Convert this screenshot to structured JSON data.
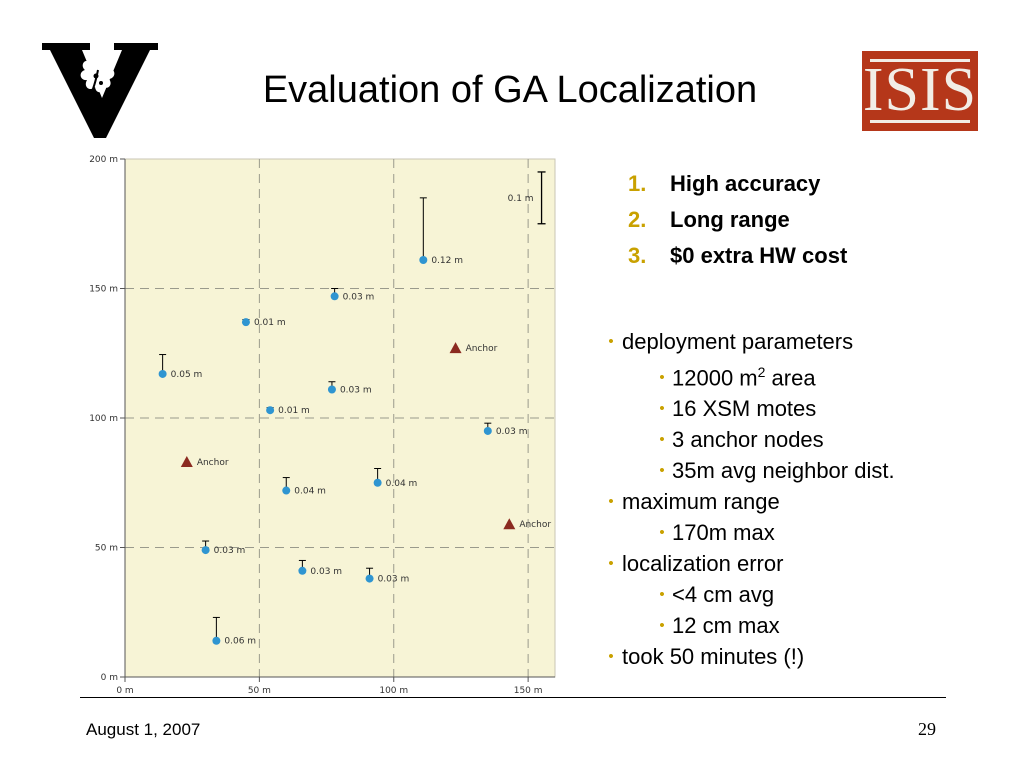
{
  "slide": {
    "title": "Evaluation of GA Localization",
    "numbered_points": [
      {
        "num": "1.",
        "text": "High accuracy"
      },
      {
        "num": "2.",
        "text": "Long range"
      },
      {
        "num": "3.",
        "text": "$0 extra HW cost"
      }
    ],
    "bullets": [
      {
        "level": 1,
        "text": "deployment parameters"
      },
      {
        "level": 2,
        "text": "12000 m",
        "sup": "2",
        "suffix": " area"
      },
      {
        "level": 2,
        "text": "16 XSM motes"
      },
      {
        "level": 2,
        "text": "3 anchor nodes"
      },
      {
        "level": 2,
        "text": "35m avg neighbor dist."
      },
      {
        "level": 1,
        "text": "maximum range"
      },
      {
        "level": 2,
        "text": "170m max"
      },
      {
        "level": 1,
        "text": "localization error"
      },
      {
        "level": 2,
        "text": "<4 cm avg"
      },
      {
        "level": 2,
        "text": "12 cm max"
      },
      {
        "level": 1,
        "text": "took 50 minutes (!)"
      }
    ],
    "footer": {
      "date": "August 1, 2007",
      "page": "29"
    },
    "isis_logo_text": "ISIS"
  },
  "colors": {
    "accent": "#c9a100",
    "plot_bg": "#f7f4d6",
    "mote": "#2f95d1",
    "anchor": "#8b2a20",
    "isis_red": "#b5371a"
  },
  "chart_data": {
    "type": "scatter",
    "xlim": [
      0,
      160
    ],
    "ylim": [
      0,
      200
    ],
    "x_ticks": [
      {
        "value": 0,
        "label": "0 m"
      },
      {
        "value": 50,
        "label": "50 m"
      },
      {
        "value": 100,
        "label": "100 m"
      },
      {
        "value": 150,
        "label": "150 m"
      }
    ],
    "y_ticks": [
      {
        "value": 0,
        "label": "0 m"
      },
      {
        "value": 50,
        "label": "50 m"
      },
      {
        "value": 100,
        "label": "100 m"
      },
      {
        "value": 150,
        "label": "150 m"
      },
      {
        "value": 200,
        "label": "200 m"
      }
    ],
    "grid": true,
    "motes": [
      {
        "x": 111,
        "y": 161,
        "err": 24,
        "label": "0.12 m"
      },
      {
        "x": 78,
        "y": 147,
        "err": 3,
        "label": "0.03 m"
      },
      {
        "x": 45,
        "y": 137,
        "err": 1,
        "label": "0.01 m"
      },
      {
        "x": 14,
        "y": 117,
        "err": 7.5,
        "label": "0.05 m"
      },
      {
        "x": 77,
        "y": 111,
        "err": 3,
        "label": "0.03 m"
      },
      {
        "x": 54,
        "y": 103,
        "err": 1,
        "label": "0.01 m"
      },
      {
        "x": 135,
        "y": 95,
        "err": 3,
        "label": "0.03 m"
      },
      {
        "x": 60,
        "y": 72,
        "err": 5,
        "label": "0.04 m"
      },
      {
        "x": 94,
        "y": 75,
        "err": 5.5,
        "label": "0.04 m"
      },
      {
        "x": 30,
        "y": 49,
        "err": 3.5,
        "label": "0.03 m"
      },
      {
        "x": 66,
        "y": 41,
        "err": 4,
        "label": "0.03 m"
      },
      {
        "x": 91,
        "y": 38,
        "err": 4,
        "label": "0.03 m"
      },
      {
        "x": 34,
        "y": 14,
        "err": 9,
        "label": "0.06 m"
      }
    ],
    "anchors": [
      {
        "x": 123,
        "y": 127,
        "label": "Anchor"
      },
      {
        "x": 23,
        "y": 83,
        "label": "Anchor"
      },
      {
        "x": 143,
        "y": 59,
        "label": "Anchor"
      }
    ],
    "scale_bar": {
      "x": 155,
      "y_bottom": 175,
      "y_top": 195,
      "label": "0.1 m"
    }
  }
}
